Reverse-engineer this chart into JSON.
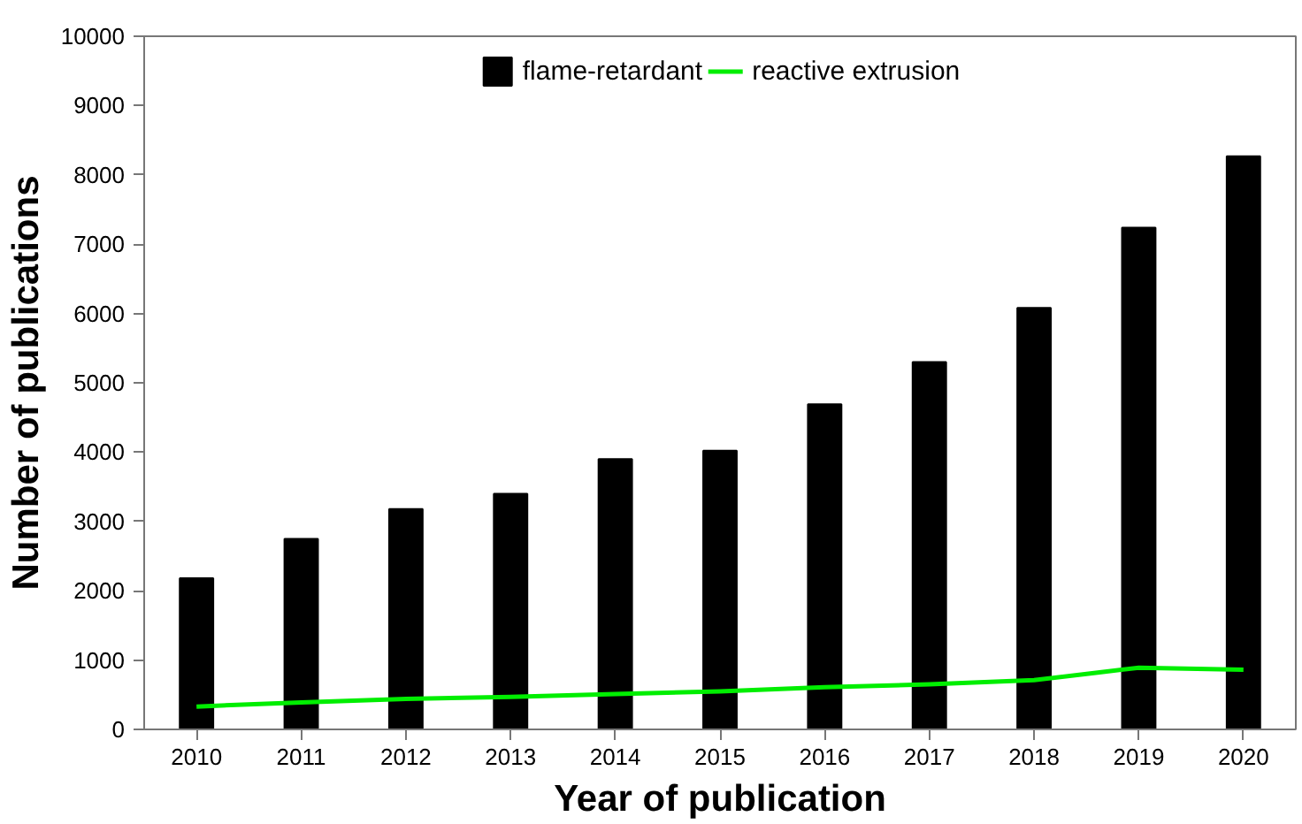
{
  "chart_data": {
    "type": "bar",
    "xlabel": "Year of publication",
    "ylabel": "Number of publications",
    "categories": [
      "2010",
      "2011",
      "2012",
      "2013",
      "2014",
      "2015",
      "2016",
      "2017",
      "2018",
      "2019",
      "2020"
    ],
    "series": [
      {
        "name": "flame-retardant",
        "color": "#000000",
        "values": [
          2180,
          2750,
          3180,
          3400,
          3900,
          4020,
          4690,
          5300,
          6080,
          7240,
          8270
        ]
      },
      {
        "name": "reactive extrusion",
        "type": "line",
        "color": "#00ee00",
        "values": [
          330,
          390,
          440,
          470,
          510,
          550,
          610,
          650,
          710,
          890,
          860
        ]
      }
    ],
    "ylim": [
      0,
      10000
    ],
    "yticks": [
      0,
      1000,
      2000,
      3000,
      4000,
      5000,
      6000,
      7000,
      8000,
      9000,
      10000
    ],
    "grid": false,
    "legend": "top"
  }
}
